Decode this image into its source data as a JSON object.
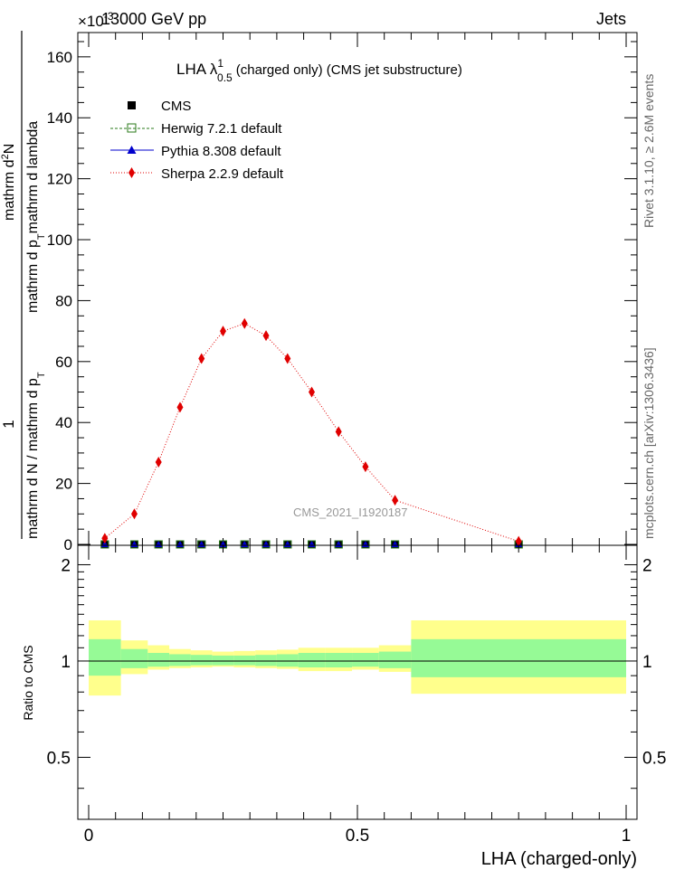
{
  "header": {
    "left": "13000 GeV pp",
    "right": "Jets",
    "exponent": "×10",
    "exponent_power": "-3"
  },
  "side_labels": {
    "rivet": "Rivet 3.1.10, ≥ 2.6M events",
    "mcplots": "mcplots.cern.ch [arXiv:1306.3436]"
  },
  "chart_data": [
    {
      "type": "line",
      "title": "LHA λ",
      "title_sup": "1",
      "title_sub": "0.5",
      "title_suffix": "(charged only) (CMS jet substructure)",
      "watermark": "CMS_2021_I1920187",
      "ylabel_numerator": "1",
      "ylabel_den": "mathrm d N / mathrm d p",
      "ylabel_den_sub": "T",
      "ylabel_num": "mathrm d",
      "ylabel_num_sup": "2",
      "ylabel_num_rest": "N",
      "ylabel_num_line2": "mathrm d p",
      "ylabel_num_line2_sub": "T",
      "ylabel_num_line2_rest": "mathrm d lambda",
      "xlim": [
        0,
        1
      ],
      "ylim": [
        0,
        165
      ],
      "yticks": [
        0,
        20,
        40,
        60,
        80,
        100,
        120,
        140,
        160
      ],
      "legend_position": "top-left",
      "bin_edges": [
        0,
        0.06,
        0.11,
        0.15,
        0.19,
        0.23,
        0.27,
        0.31,
        0.35,
        0.39,
        0.44,
        0.49,
        0.54,
        0.6,
        1.0
      ],
      "x": [
        0.03,
        0.085,
        0.13,
        0.17,
        0.21,
        0.25,
        0.29,
        0.33,
        0.37,
        0.415,
        0.465,
        0.515,
        0.57,
        0.8
      ],
      "series": [
        {
          "name": "CMS",
          "style": "marker-square",
          "color": "#000000",
          "values": [
            0,
            0,
            0,
            0,
            0,
            0,
            0,
            0,
            0,
            0,
            0,
            0,
            0,
            0
          ]
        },
        {
          "name": "Herwig 7.2.1 default",
          "style": "open-square-dashed",
          "color": "#2a7a1a",
          "values": [
            0,
            0,
            0,
            0,
            0,
            0,
            0,
            0,
            0,
            0,
            0,
            0,
            0,
            0
          ]
        },
        {
          "name": "Pythia 8.308 default",
          "style": "triangle-solid",
          "color": "#0000cc",
          "values": [
            0,
            0,
            0,
            0,
            0,
            0,
            0,
            0,
            0,
            0,
            0,
            0,
            0,
            0
          ]
        },
        {
          "name": "Sherpa 2.2.9 default",
          "style": "diamond-dotted",
          "color": "#e00000",
          "values": [
            2,
            10,
            27,
            45,
            61,
            70,
            72.5,
            68.5,
            61,
            50,
            37,
            25.5,
            14.5,
            1
          ]
        }
      ]
    },
    {
      "type": "ratio",
      "ylabel": "Ratio to CMS",
      "xlabel": "LHA (charged-only)",
      "xlim": [
        0,
        1
      ],
      "ylim": [
        0.32,
        2.3
      ],
      "yticks": [
        0.5,
        1,
        2
      ],
      "ytick_labels": [
        "0.5",
        "1",
        "2"
      ],
      "xticks": [
        0,
        0.5,
        1
      ],
      "xtick_labels": [
        "0",
        "0.5",
        "1"
      ],
      "band_colors": {
        "outer": "#ffff8c",
        "inner": "#96fa96"
      },
      "bands": [
        {
          "inner": [
            0.9,
            1.17
          ],
          "outer": [
            0.78,
            1.34
          ]
        },
        {
          "inner": [
            0.95,
            1.09
          ],
          "outer": [
            0.91,
            1.16
          ]
        },
        {
          "inner": [
            0.96,
            1.06
          ],
          "outer": [
            0.94,
            1.12
          ]
        },
        {
          "inner": [
            0.965,
            1.05
          ],
          "outer": [
            0.95,
            1.09
          ]
        },
        {
          "inner": [
            0.97,
            1.045
          ],
          "outer": [
            0.955,
            1.08
          ]
        },
        {
          "inner": [
            0.97,
            1.04
          ],
          "outer": [
            0.96,
            1.07
          ]
        },
        {
          "inner": [
            0.97,
            1.04
          ],
          "outer": [
            0.955,
            1.075
          ]
        },
        {
          "inner": [
            0.965,
            1.045
          ],
          "outer": [
            0.95,
            1.08
          ]
        },
        {
          "inner": [
            0.96,
            1.05
          ],
          "outer": [
            0.945,
            1.085
          ]
        },
        {
          "inner": [
            0.955,
            1.06
          ],
          "outer": [
            0.93,
            1.1
          ]
        },
        {
          "inner": [
            0.955,
            1.06
          ],
          "outer": [
            0.93,
            1.1
          ]
        },
        {
          "inner": [
            0.96,
            1.06
          ],
          "outer": [
            0.94,
            1.1
          ]
        },
        {
          "inner": [
            0.95,
            1.07
          ],
          "outer": [
            0.925,
            1.12
          ]
        },
        {
          "inner": [
            0.89,
            1.17
          ],
          "outer": [
            0.79,
            1.34
          ]
        }
      ]
    }
  ]
}
